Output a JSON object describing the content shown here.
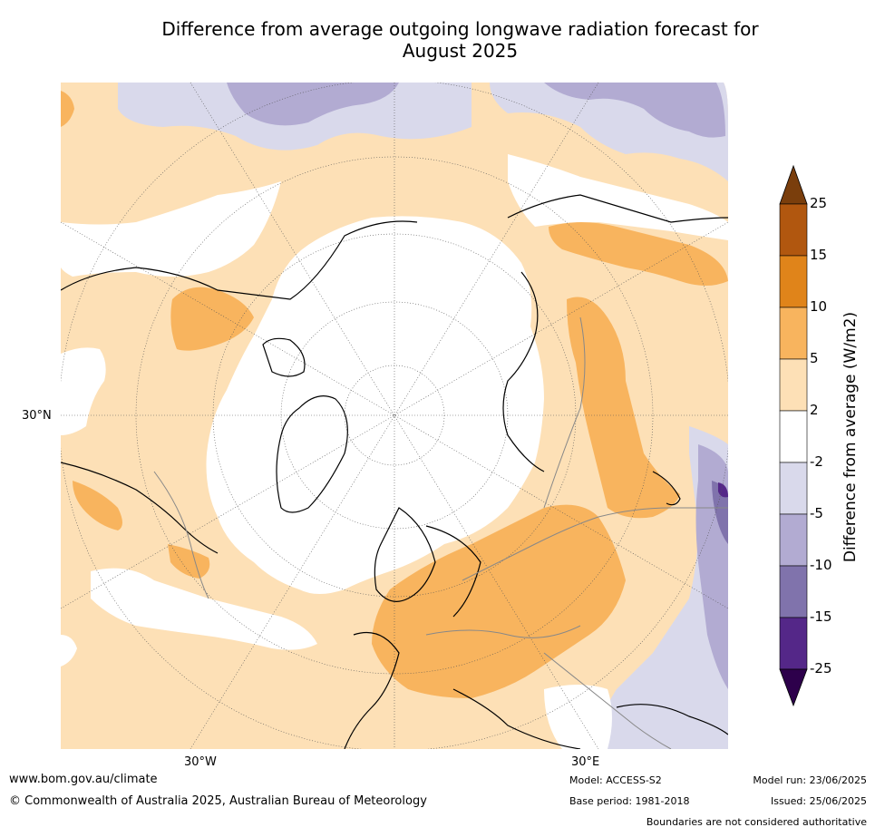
{
  "title": {
    "line1": "Difference from average outgoing longwave radiation forecast for",
    "line2": "August 2025"
  },
  "map": {
    "projection": "north-polar-stereographic",
    "lat_labels": [
      "30°N"
    ],
    "lon_labels": [
      "30°W",
      "30°E"
    ],
    "region_colors": {
      "above_25": "#7a3e0c",
      "15_to_25": "#b1570f",
      "10_to_15": "#e0841a",
      "5_to_10": "#f8b45e",
      "2_to_5": "#fde0b6",
      "neutral": "#ffffff",
      "m5_to_m2": "#d9d9eb",
      "m10_to_m5": "#b2abd2",
      "m15_to_m10": "#8073ac",
      "m25_to_m15": "#542788",
      "below_m25": "#2d004b"
    }
  },
  "colorbar": {
    "title": "Difference from average (W/m2)",
    "ticks": [
      "25",
      "15",
      "10",
      "5",
      "2",
      "-2",
      "-5",
      "-10",
      "-15",
      "-25"
    ],
    "colors": [
      "#b1570f",
      "#e0841a",
      "#f8b45e",
      "#fde0b6",
      "#ffffff",
      "#d9d9eb",
      "#b2abd2",
      "#8073ac",
      "#542788"
    ],
    "top_extend_color": "#7a3e0c",
    "bottom_extend_color": "#2d004b"
  },
  "footer": {
    "website": "www.bom.gov.au/climate",
    "copyright": "© Commonwealth of Australia 2025, Australian Bureau of Meteorology",
    "model": "Model: ACCESS-S2",
    "base_period": "Base period: 1981-2018",
    "model_run": "Model run: 23/06/2025",
    "issued": "Issued: 25/06/2025",
    "disclaimer": "Boundaries are not considered authoritative"
  }
}
